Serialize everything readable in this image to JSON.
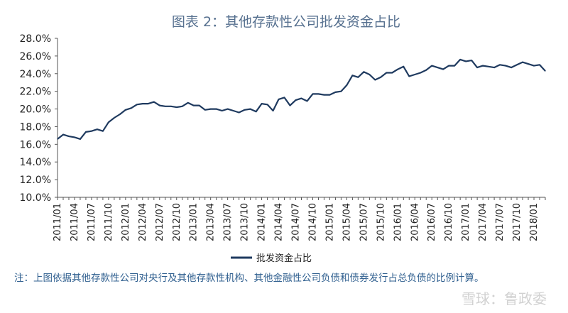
{
  "chart_data": {
    "type": "line",
    "title": "图表 2：其他存款性公司批发资金占比",
    "xlabel": "",
    "ylabel": "",
    "ylim": [
      10.0,
      28.0
    ],
    "yticks": [
      "10.0%",
      "12.0%",
      "14.0%",
      "16.0%",
      "18.0%",
      "20.0%",
      "22.0%",
      "24.0%",
      "26.0%",
      "28.0%"
    ],
    "xtick_labels": [
      "2011/01",
      "2011/04",
      "2011/07",
      "2011/10",
      "2012/01",
      "2012/04",
      "2012/07",
      "2012/10",
      "2013/01",
      "2013/04",
      "2013/07",
      "2013/10",
      "2014/01",
      "2014/04",
      "2014/07",
      "2014/10",
      "2015/01",
      "2015/04",
      "2015/07",
      "2015/10",
      "2016/01",
      "2016/04",
      "2016/07",
      "2016/10",
      "2017/01",
      "2017/04",
      "2017/07",
      "2017/10",
      "2018/01"
    ],
    "legend_position": "bottom",
    "grid": false,
    "x": [
      "2011/01",
      "2011/02",
      "2011/03",
      "2011/04",
      "2011/05",
      "2011/06",
      "2011/07",
      "2011/08",
      "2011/09",
      "2011/10",
      "2011/11",
      "2011/12",
      "2012/01",
      "2012/02",
      "2012/03",
      "2012/04",
      "2012/05",
      "2012/06",
      "2012/07",
      "2012/08",
      "2012/09",
      "2012/10",
      "2012/11",
      "2012/12",
      "2013/01",
      "2013/02",
      "2013/03",
      "2013/04",
      "2013/05",
      "2013/06",
      "2013/07",
      "2013/08",
      "2013/09",
      "2013/10",
      "2013/11",
      "2013/12",
      "2014/01",
      "2014/02",
      "2014/03",
      "2014/04",
      "2014/05",
      "2014/06",
      "2014/07",
      "2014/08",
      "2014/09",
      "2014/10",
      "2014/11",
      "2014/12",
      "2015/01",
      "2015/02",
      "2015/03",
      "2015/04",
      "2015/05",
      "2015/06",
      "2015/07",
      "2015/08",
      "2015/09",
      "2015/10",
      "2015/11",
      "2015/12",
      "2016/01",
      "2016/02",
      "2016/03",
      "2016/04",
      "2016/05",
      "2016/06",
      "2016/07",
      "2016/08",
      "2016/09",
      "2016/10",
      "2016/11",
      "2016/12",
      "2017/01",
      "2017/02",
      "2017/03",
      "2017/04",
      "2017/05",
      "2017/06",
      "2017/07",
      "2017/08",
      "2017/09",
      "2017/10",
      "2017/11",
      "2017/12",
      "2018/01",
      "2018/02",
      "2018/03"
    ],
    "series": [
      {
        "name": "批发资金占比",
        "color": "#1f3a5f",
        "values": [
          16.6,
          17.1,
          16.9,
          16.8,
          16.6,
          17.4,
          17.5,
          17.7,
          17.5,
          18.5,
          19.0,
          19.4,
          19.9,
          20.1,
          20.5,
          20.6,
          20.6,
          20.8,
          20.4,
          20.3,
          20.3,
          20.2,
          20.3,
          20.7,
          20.4,
          20.4,
          19.9,
          20.0,
          20.0,
          19.8,
          20.0,
          19.8,
          19.6,
          19.9,
          20.0,
          19.7,
          20.6,
          20.5,
          19.8,
          21.1,
          21.3,
          20.4,
          21.0,
          21.2,
          20.9,
          21.7,
          21.7,
          21.6,
          21.6,
          21.9,
          22.0,
          22.7,
          23.8,
          23.6,
          24.2,
          23.9,
          23.3,
          23.6,
          24.1,
          24.1,
          24.5,
          24.8,
          23.7,
          23.9,
          24.1,
          24.4,
          24.9,
          24.7,
          24.5,
          24.9,
          24.9,
          25.6,
          25.4,
          25.5,
          24.7,
          24.9,
          24.8,
          24.7,
          25.0,
          24.9,
          24.7,
          25.0,
          25.3,
          25.1,
          24.9,
          25.0,
          24.3
        ]
      }
    ]
  },
  "note": "注：上图依据其他存款性公司对央行及其他存款性机构、其他金融性公司负债和债券发行占总负债的比例计算。",
  "watermark": "雪球：鲁政委"
}
